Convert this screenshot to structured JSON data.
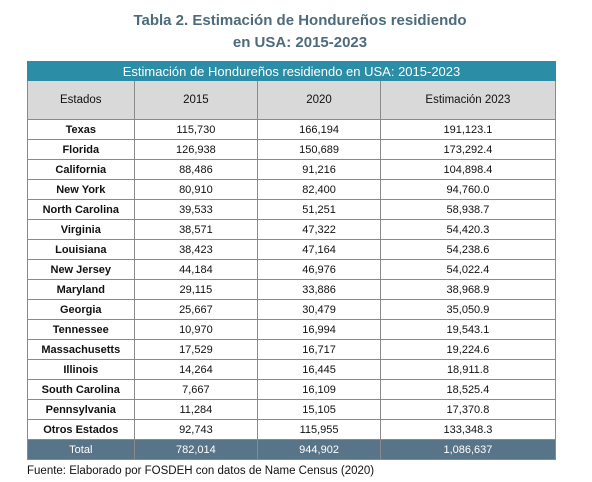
{
  "header": {
    "title": "Tabla 2. Estimación de Hondureños residiendo en USA: 2015-2023"
  },
  "table": {
    "caption": "Estimación de Hondureños residiendo en USA: 2015-2023",
    "columns": [
      "Estados",
      "2015",
      "2020",
      "Estimación 2023"
    ],
    "rows": [
      [
        "Texas",
        "115,730",
        "166,194",
        "191,123.1"
      ],
      [
        "Florida",
        "126,938",
        "150,689",
        "173,292.4"
      ],
      [
        "California",
        "88,486",
        "91,216",
        "104,898.4"
      ],
      [
        "New York",
        "80,910",
        "82,400",
        "94,760.0"
      ],
      [
        "North Carolina",
        "39,533",
        "51,251",
        "58,938.7"
      ],
      [
        "Virginia",
        "38,571",
        "47,322",
        "54,420.3"
      ],
      [
        "Louisiana",
        "38,423",
        "47,164",
        "54,238.6"
      ],
      [
        "New Jersey",
        "44,184",
        "46,976",
        "54,022.4"
      ],
      [
        "Maryland",
        "29,115",
        "33,886",
        "38,968.9"
      ],
      [
        "Georgia",
        "25,667",
        "30,479",
        "35,050.9"
      ],
      [
        "Tennessee",
        "10,970",
        "16,994",
        "19,543.1"
      ],
      [
        "Massachusetts",
        "17,529",
        "16,717",
        "19,224.6"
      ],
      [
        "Illinois",
        "14,264",
        "16,445",
        "18,911.8"
      ],
      [
        "South Carolina",
        "7,667",
        "16,109",
        "18,525.4"
      ],
      [
        "Pennsylvania",
        "11,284",
        "15,105",
        "17,370.8"
      ],
      [
        "Otros Estados",
        "92,743",
        "115,955",
        "133,348.3"
      ]
    ],
    "total": [
      "Total",
      "782,014",
      "944,902",
      "1,086,637"
    ]
  },
  "footer": {
    "source": "Fuente: Elaborado por FOSDEH con datos de Name Census (2020)"
  }
}
